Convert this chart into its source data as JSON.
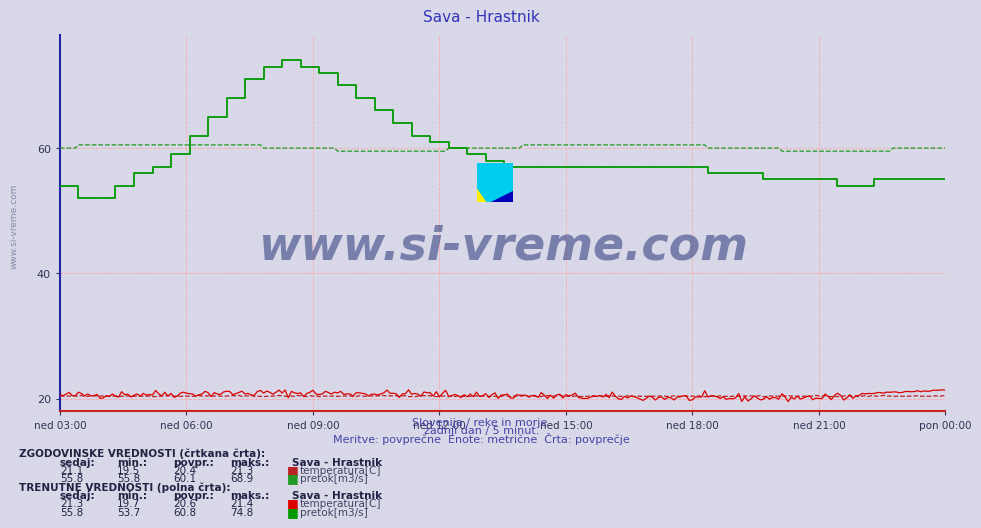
{
  "title": "Sava - Hrastnik",
  "title_color": "#3333bb",
  "bg_color": "#d8d8e8",
  "plot_bg_color": "#d8d8e8",
  "ylim": [
    18,
    78
  ],
  "yticks": [
    20,
    40,
    60
  ],
  "xtick_labels": [
    "ned 03:00",
    "ned 06:00",
    "ned 09:00",
    "ned 12:00",
    "ned 15:00",
    "ned 18:00",
    "ned 21:00",
    "pon 00:00"
  ],
  "n_points": 288,
  "subtitle1": "Slovenija / reke in morje.",
  "subtitle2": "zadnji dan / 5 minut.",
  "subtitle3": "Meritve: povprečne  Enote: metrične  Črta: povprečje",
  "watermark": "www.si-vreme.com",
  "watermark_color": "#1a2870",
  "temp_color": "#dd0000",
  "flow_color": "#009900",
  "temp_hist_color": "#bb2222",
  "flow_hist_color": "#229922",
  "hist_label1": "ZGODOVINSKE VREDNOSTI (črtkana črta):",
  "curr_label1": "TRENUTNE VREDNOSTI (polna črta):",
  "col_headers": [
    "sedaj:",
    "min.:",
    "povpr.:",
    "maks.:"
  ],
  "station_label": "Sava - Hrastnik",
  "hist_temp_vals": [
    21.1,
    19.5,
    20.4,
    21.3
  ],
  "hist_flow_vals": [
    55.8,
    55.8,
    60.1,
    68.9
  ],
  "curr_temp_vals": [
    21.3,
    19.7,
    20.6,
    21.4
  ],
  "curr_flow_vals": [
    55.8,
    53.7,
    60.8,
    74.8
  ],
  "temp_label": "temperatura[C]",
  "flow_label": "pretok[m3/s]",
  "left_watermark": "www.si-vreme.com"
}
